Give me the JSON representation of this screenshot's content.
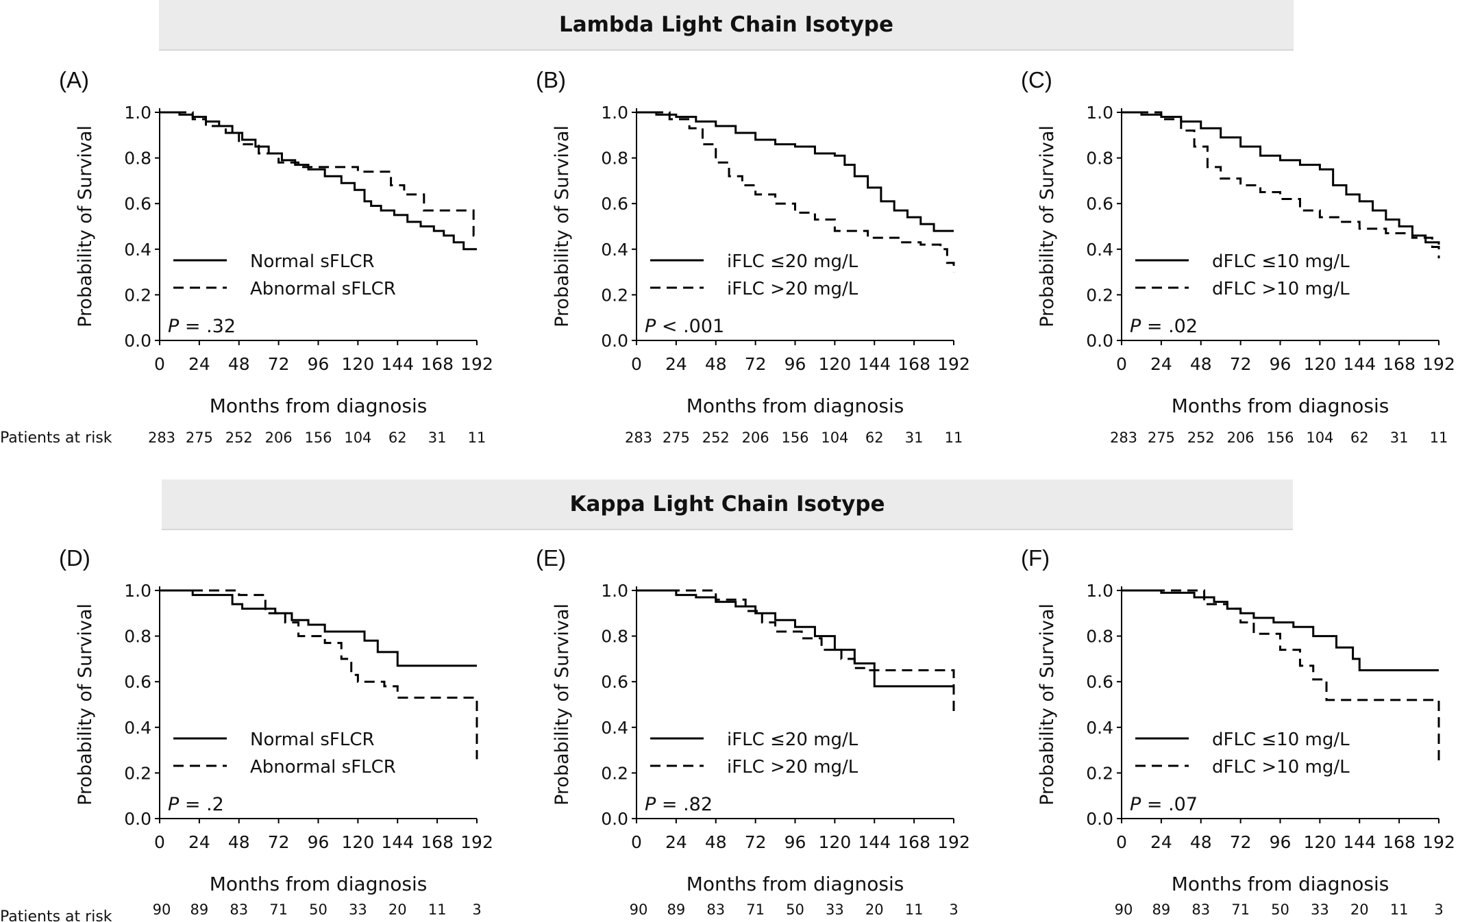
{
  "banners": [
    "Lambda Light Chain Isotype",
    "Kappa Light Chain Isotype"
  ],
  "risk_label": "Patients at risk",
  "chart_data": [
    {
      "type": "line",
      "panel": "(A)",
      "ylabel": "Probability of Survival",
      "xlabel": "Months from diagnosis",
      "xlim": [
        0,
        192
      ],
      "ylim": [
        0,
        1
      ],
      "xticks": [
        0,
        24,
        48,
        72,
        96,
        120,
        144,
        168,
        192
      ],
      "yticks": [
        0.0,
        0.2,
        0.4,
        0.6,
        0.8,
        1.0
      ],
      "legend": "lower-left",
      "pvalue": "= .32",
      "series": [
        {
          "name": "Normal sFLCR",
          "style": "solid",
          "x": [
            0,
            6,
            12,
            20,
            28,
            36,
            44,
            50,
            58,
            66,
            74,
            82,
            90,
            100,
            110,
            118,
            124,
            128,
            134,
            142,
            150,
            158,
            166,
            172,
            178,
            184,
            192
          ],
          "y": [
            1.0,
            1.0,
            0.99,
            0.98,
            0.96,
            0.94,
            0.91,
            0.88,
            0.85,
            0.82,
            0.79,
            0.77,
            0.75,
            0.72,
            0.69,
            0.66,
            0.61,
            0.59,
            0.57,
            0.55,
            0.52,
            0.5,
            0.48,
            0.46,
            0.43,
            0.4,
            0.4
          ]
        },
        {
          "name": "Abnormal sFLCR",
          "style": "dashed",
          "x": [
            0,
            20,
            28,
            40,
            48,
            60,
            72,
            84,
            108,
            120,
            126,
            140,
            148,
            160,
            188,
            190,
            192
          ],
          "y": [
            1.0,
            0.97,
            0.94,
            0.91,
            0.86,
            0.82,
            0.78,
            0.76,
            0.76,
            0.74,
            0.74,
            0.68,
            0.64,
            0.57,
            0.57,
            0.46,
            0.46
          ]
        }
      ],
      "risk": [
        "283",
        "275",
        "252",
        "206",
        "156",
        "104",
        "62",
        "31",
        "11"
      ]
    },
    {
      "type": "line",
      "panel": "(B)",
      "ylabel": "Probability of Survival",
      "xlabel": "Months from diagnosis",
      "xlim": [
        0,
        192
      ],
      "ylim": [
        0,
        1
      ],
      "xticks": [
        0,
        24,
        48,
        72,
        96,
        120,
        144,
        168,
        192
      ],
      "yticks": [
        0.0,
        0.2,
        0.4,
        0.6,
        0.8,
        1.0
      ],
      "legend": "lower-left",
      "pvalue": "< .001",
      "series": [
        {
          "name": "iFLC ≤20 mg/L",
          "style": "solid",
          "x": [
            0,
            12,
            24,
            36,
            48,
            60,
            72,
            84,
            96,
            108,
            120,
            126,
            132,
            140,
            148,
            156,
            164,
            172,
            180,
            192
          ],
          "y": [
            1.0,
            0.99,
            0.98,
            0.96,
            0.94,
            0.91,
            0.88,
            0.86,
            0.85,
            0.82,
            0.81,
            0.77,
            0.72,
            0.67,
            0.61,
            0.57,
            0.54,
            0.51,
            0.48,
            0.48
          ]
        },
        {
          "name": "iFLC  >20 mg/L",
          "style": "dashed",
          "x": [
            0,
            20,
            32,
            40,
            48,
            56,
            64,
            72,
            84,
            96,
            108,
            120,
            140,
            160,
            172,
            184,
            188,
            192
          ],
          "y": [
            1.0,
            0.97,
            0.93,
            0.86,
            0.78,
            0.72,
            0.68,
            0.64,
            0.6,
            0.56,
            0.53,
            0.48,
            0.45,
            0.43,
            0.42,
            0.4,
            0.34,
            0.3
          ]
        }
      ],
      "risk": [
        "283",
        "275",
        "252",
        "206",
        "156",
        "104",
        "62",
        "31",
        "11"
      ]
    },
    {
      "type": "line",
      "panel": "(C)",
      "ylabel": "Probability of Survival",
      "xlabel": "Months from diagnosis",
      "xlim": [
        0,
        192
      ],
      "ylim": [
        0,
        1
      ],
      "xticks": [
        0,
        24,
        48,
        72,
        96,
        120,
        144,
        168,
        192
      ],
      "yticks": [
        0.0,
        0.2,
        0.4,
        0.6,
        0.8,
        1.0
      ],
      "legend": "lower-left",
      "pvalue": "= .02",
      "series": [
        {
          "name": "dFLC ≤10 mg/L",
          "style": "solid",
          "x": [
            0,
            12,
            24,
            36,
            48,
            60,
            72,
            84,
            96,
            108,
            120,
            128,
            136,
            144,
            152,
            160,
            168,
            176,
            184,
            192
          ],
          "y": [
            1.0,
            0.99,
            0.98,
            0.96,
            0.93,
            0.89,
            0.85,
            0.81,
            0.79,
            0.77,
            0.75,
            0.68,
            0.64,
            0.61,
            0.57,
            0.53,
            0.5,
            0.46,
            0.43,
            0.42
          ]
        },
        {
          "name": "dFLC >10 mg/L",
          "style": "dashed",
          "x": [
            0,
            24,
            36,
            44,
            52,
            60,
            72,
            84,
            96,
            108,
            120,
            132,
            144,
            160,
            176,
            188,
            192
          ],
          "y": [
            1.0,
            0.97,
            0.92,
            0.85,
            0.76,
            0.71,
            0.68,
            0.65,
            0.62,
            0.57,
            0.54,
            0.52,
            0.49,
            0.47,
            0.45,
            0.41,
            0.36
          ]
        }
      ],
      "risk": [
        "283",
        "275",
        "252",
        "206",
        "156",
        "104",
        "62",
        "31",
        "11"
      ]
    },
    {
      "type": "line",
      "panel": "(D)",
      "ylabel": "Probability of Survival",
      "xlabel": "Months from diagnosis",
      "xlim": [
        0,
        192
      ],
      "ylim": [
        0,
        1
      ],
      "xticks": [
        0,
        24,
        48,
        72,
        96,
        120,
        144,
        168,
        192
      ],
      "yticks": [
        0.0,
        0.2,
        0.4,
        0.6,
        0.8,
        1.0
      ],
      "legend": "lower-left",
      "pvalue": "= .2",
      "series": [
        {
          "name": "Normal sFLCR",
          "style": "solid",
          "x": [
            0,
            20,
            44,
            50,
            70,
            80,
            90,
            100,
            124,
            132,
            144,
            192
          ],
          "y": [
            1.0,
            0.98,
            0.94,
            0.92,
            0.9,
            0.87,
            0.85,
            0.82,
            0.78,
            0.73,
            0.67,
            0.67
          ]
        },
        {
          "name": "Abnormal sFLCR",
          "style": "dashed",
          "x": [
            0,
            38,
            48,
            64,
            76,
            84,
            100,
            110,
            116,
            120,
            136,
            144,
            188,
            192
          ],
          "y": [
            1.0,
            1.0,
            0.98,
            0.9,
            0.86,
            0.8,
            0.77,
            0.7,
            0.63,
            0.6,
            0.58,
            0.53,
            0.53,
            0.26
          ]
        }
      ],
      "risk": [
        "90",
        "89",
        "83",
        "71",
        "50",
        "33",
        "20",
        "11",
        "3"
      ]
    },
    {
      "type": "line",
      "panel": "(E)",
      "ylabel": "Probability of Survival",
      "xlabel": "Months from diagnosis",
      "xlim": [
        0,
        192
      ],
      "ylim": [
        0,
        1
      ],
      "xticks": [
        0,
        24,
        48,
        72,
        96,
        120,
        144,
        168,
        192
      ],
      "yticks": [
        0.0,
        0.2,
        0.4,
        0.6,
        0.8,
        1.0
      ],
      "legend": "lower-left",
      "pvalue": "= .82",
      "series": [
        {
          "name": "iFLC ≤20 mg/L",
          "style": "solid",
          "x": [
            0,
            12,
            24,
            36,
            48,
            60,
            72,
            84,
            96,
            108,
            120,
            132,
            144,
            190,
            192
          ],
          "y": [
            1.0,
            1.0,
            0.98,
            0.97,
            0.95,
            0.93,
            0.9,
            0.87,
            0.84,
            0.8,
            0.74,
            0.68,
            0.58,
            0.58,
            0.57
          ]
        },
        {
          "name": "iFLC  >20 mg/L",
          "style": "dashed",
          "x": [
            0,
            40,
            48,
            66,
            76,
            84,
            100,
            112,
            124,
            132,
            140,
            190,
            192
          ],
          "y": [
            1.0,
            1.0,
            0.96,
            0.91,
            0.86,
            0.82,
            0.79,
            0.74,
            0.7,
            0.66,
            0.65,
            0.65,
            0.45
          ]
        }
      ],
      "risk": [
        "90",
        "89",
        "83",
        "71",
        "50",
        "33",
        "20",
        "11",
        "3"
      ]
    },
    {
      "type": "line",
      "panel": "(F)",
      "ylabel": "Probability of Survival",
      "xlabel": "Months from diagnosis",
      "xlim": [
        0,
        192
      ],
      "ylim": [
        0,
        1
      ],
      "xticks": [
        0,
        24,
        48,
        72,
        96,
        120,
        144,
        168,
        192
      ],
      "yticks": [
        0.0,
        0.2,
        0.4,
        0.6,
        0.8,
        1.0
      ],
      "legend": "lower-left",
      "pvalue": "= .07",
      "series": [
        {
          "name": "dFLC ≤10 mg/L",
          "style": "solid",
          "x": [
            0,
            24,
            44,
            56,
            64,
            72,
            80,
            92,
            104,
            116,
            130,
            140,
            144,
            192
          ],
          "y": [
            1.0,
            0.99,
            0.97,
            0.95,
            0.92,
            0.9,
            0.88,
            0.86,
            0.84,
            0.8,
            0.75,
            0.7,
            0.65,
            0.65
          ]
        },
        {
          "name": "dFLC >10 mg/L",
          "style": "dashed",
          "x": [
            0,
            40,
            50,
            64,
            72,
            80,
            96,
            108,
            116,
            124,
            190,
            192
          ],
          "y": [
            1.0,
            1.0,
            0.94,
            0.92,
            0.86,
            0.81,
            0.74,
            0.67,
            0.61,
            0.52,
            0.52,
            0.25
          ]
        }
      ],
      "risk": [
        "90",
        "89",
        "83",
        "71",
        "50",
        "33",
        "20",
        "11",
        "3"
      ]
    }
  ]
}
